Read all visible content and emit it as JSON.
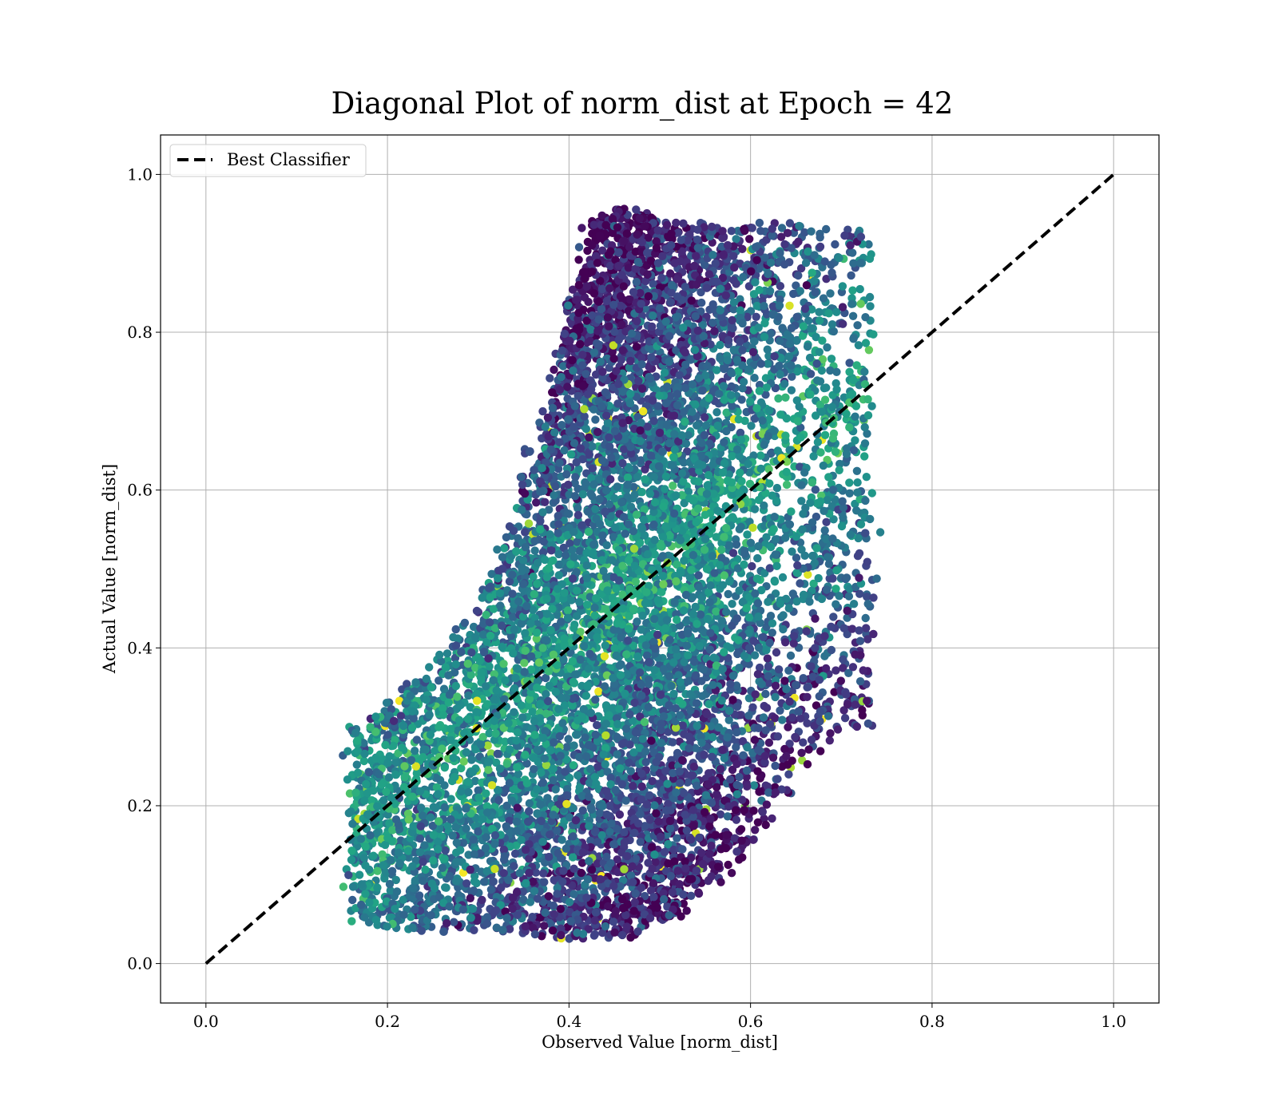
{
  "chart_data": {
    "type": "scatter",
    "title": "Diagonal Plot of norm_dist at Epoch = 42",
    "xlabel": "Observed Value [norm_dist]",
    "ylabel": "Actual Value [norm_dist]",
    "xlim": [
      -0.05,
      1.05
    ],
    "ylim": [
      -0.05,
      1.05
    ],
    "xticks": [
      "0.0",
      "0.2",
      "0.4",
      "0.6",
      "0.8",
      "1.0"
    ],
    "yticks": [
      "0.0",
      "0.2",
      "0.4",
      "0.6",
      "0.8",
      "1.0"
    ],
    "grid": true,
    "legend": {
      "position": "top-left",
      "entries": [
        "Best Classifier"
      ]
    },
    "colormap": "viridis",
    "reference_line": {
      "name": "Best Classifier",
      "x": [
        0.0,
        1.0
      ],
      "y": [
        0.0,
        1.0
      ],
      "style": "dashed",
      "color": "#000000"
    },
    "point_cloud": {
      "approx_count": 9000,
      "x_range": [
        0.16,
        0.73
      ],
      "y_range": [
        0.01,
        0.97
      ],
      "columns": [
        {
          "x": 0.18,
          "y_min": 0.05,
          "y_max": 0.3
        },
        {
          "x": 0.22,
          "y_min": 0.04,
          "y_max": 0.35
        },
        {
          "x": 0.26,
          "y_min": 0.04,
          "y_max": 0.39
        },
        {
          "x": 0.3,
          "y_min": 0.04,
          "y_max": 0.45
        },
        {
          "x": 0.34,
          "y_min": 0.04,
          "y_max": 0.56
        },
        {
          "x": 0.38,
          "y_min": 0.03,
          "y_max": 0.72
        },
        {
          "x": 0.42,
          "y_min": 0.03,
          "y_max": 0.94
        },
        {
          "x": 0.46,
          "y_min": 0.03,
          "y_max": 0.96
        },
        {
          "x": 0.5,
          "y_min": 0.05,
          "y_max": 0.94
        },
        {
          "x": 0.54,
          "y_min": 0.08,
          "y_max": 0.94
        },
        {
          "x": 0.58,
          "y_min": 0.12,
          "y_max": 0.93
        },
        {
          "x": 0.62,
          "y_min": 0.18,
          "y_max": 0.94
        },
        {
          "x": 0.66,
          "y_min": 0.24,
          "y_max": 0.94
        },
        {
          "x": 0.7,
          "y_min": 0.3,
          "y_max": 0.93
        }
      ]
    }
  }
}
